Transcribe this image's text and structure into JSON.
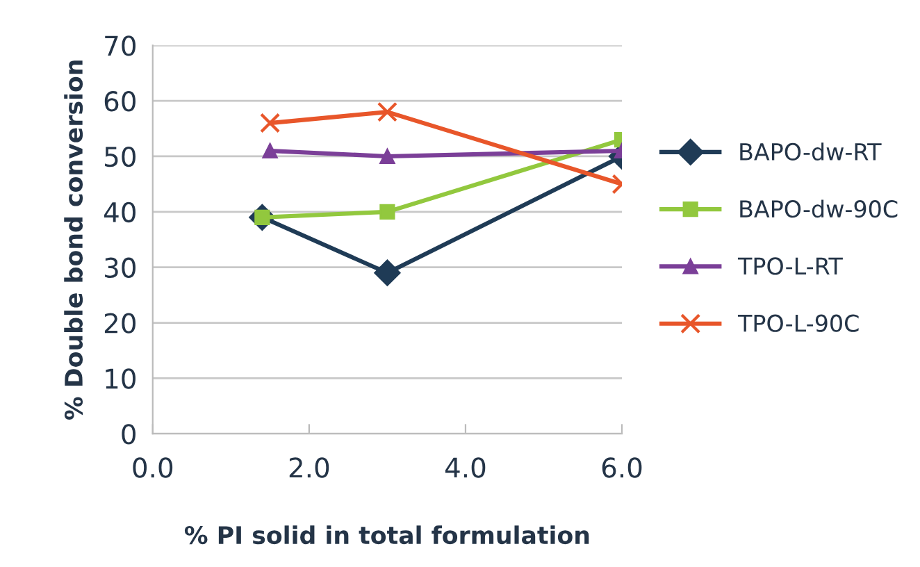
{
  "chart_data": {
    "type": "line",
    "xlabel": "% PI solid in total formulation",
    "ylabel": "% Double bond conversion",
    "xlim": [
      0,
      6
    ],
    "xticks": [
      {
        "value": 0,
        "label": "0.0"
      },
      {
        "value": 2,
        "label": "2.0"
      },
      {
        "value": 4,
        "label": "4.0"
      },
      {
        "value": 6,
        "label": "6.0"
      }
    ],
    "ylim": [
      0,
      70
    ],
    "yticks": [
      0,
      10,
      20,
      30,
      40,
      50,
      60,
      70
    ],
    "grid": "y",
    "legend": "right",
    "series": [
      {
        "name": "BAPO-dw-RT",
        "color": "#1f3b56",
        "marker": "diamond",
        "x": [
          1.4,
          3,
          6
        ],
        "values": [
          39,
          29,
          50
        ]
      },
      {
        "name": "BAPO-dw-90C",
        "color": "#92c83e",
        "marker": "square",
        "x": [
          1.4,
          3,
          6
        ],
        "values": [
          39,
          40,
          53
        ]
      },
      {
        "name": "TPO-L-RT",
        "color": "#7b3f98",
        "marker": "triangle",
        "x": [
          1.5,
          3,
          6
        ],
        "values": [
          51,
          50,
          51
        ]
      },
      {
        "name": "TPO-L-90C",
        "color": "#e8562a",
        "marker": "cross",
        "x": [
          1.5,
          3,
          6
        ],
        "values": [
          56,
          58,
          45
        ]
      }
    ]
  }
}
